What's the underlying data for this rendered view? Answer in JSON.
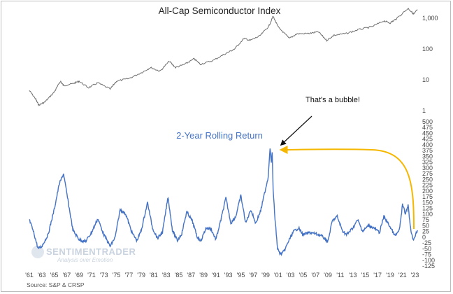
{
  "chart_data": [
    {
      "type": "line",
      "title": "All-Cap Semiconductor Index",
      "yscale": "log",
      "y_tick_labels": [
        "1,000",
        "100",
        "10",
        "1"
      ],
      "y_ticks": [
        1000,
        100,
        10,
        1
      ],
      "ylim": [
        1,
        2200
      ],
      "x_range": [
        "1961",
        "2023"
      ],
      "series": [
        {
          "x": [
            1961.0,
            1962.0,
            1962.5,
            1963.5,
            1965.0,
            1966.0,
            1966.5,
            1968.0,
            1969.0,
            1970.5,
            1972.0,
            1974.0,
            1975.0,
            1977.0,
            1979.0,
            1980.5,
            1982.0,
            1983.5,
            1984.5,
            1986.0,
            1987.5,
            1988.5,
            1990.5,
            1992.5,
            1994.0,
            1995.5,
            1996.5,
            1998.0,
            1999.5,
            2000.2,
            2001.0,
            2002.8,
            2004.0,
            2006.0,
            2007.5,
            2008.8,
            2010.0,
            2012.0,
            2014.0,
            2016.0,
            2018.0,
            2019.0,
            2020.0,
            2021.9,
            2022.8,
            2023.4
          ],
          "values": [
            4.5,
            2.4,
            1.5,
            1.9,
            4.0,
            9.0,
            6.5,
            7.5,
            9.0,
            5.5,
            8.0,
            5.0,
            9.0,
            11.0,
            17.0,
            25.0,
            19.0,
            40.0,
            25.0,
            32.0,
            48.0,
            32.0,
            42.0,
            70.0,
            100.0,
            220.0,
            190.0,
            260.0,
            550.0,
            1150.0,
            520.0,
            220.0,
            310.0,
            320.0,
            360.0,
            190.0,
            280.0,
            320.0,
            430.0,
            520.0,
            820.0,
            700.0,
            950.0,
            2100.0,
            1350.0,
            1900.0
          ]
        }
      ]
    },
    {
      "type": "line",
      "title": "2-Year Rolling Return",
      "ylim": [
        -125,
        500
      ],
      "y_ticks": [
        500,
        475,
        450,
        425,
        400,
        375,
        350,
        325,
        300,
        275,
        250,
        225,
        200,
        175,
        150,
        125,
        100,
        75,
        50,
        25,
        0,
        -25,
        -50,
        -75,
        -100,
        -125
      ],
      "x_ticks": [
        "'61",
        "'63",
        "'65",
        "'67",
        "'69",
        "'71",
        "'73",
        "'75",
        "'77",
        "'79",
        "'81",
        "'83",
        "'85",
        "'87",
        "'89",
        "'91",
        "'93",
        "'95",
        "'97",
        "'99",
        "'01",
        "'03",
        "'05",
        "'07",
        "'09",
        "'11",
        "'13",
        "'15",
        "'17",
        "'19",
        "'21",
        "'23"
      ],
      "x_range": [
        "1961",
        "2023"
      ],
      "color": "#4472c4",
      "annotation_color": "#f5b700",
      "annotation": "That's a bubble!",
      "series": [
        {
          "x": [
            1961.0,
            1961.7,
            1962.4,
            1963.0,
            1964.0,
            1965.0,
            1965.8,
            1966.5,
            1967.2,
            1968.0,
            1969.0,
            1970.0,
            1971.0,
            1972.0,
            1973.0,
            1974.0,
            1974.8,
            1975.6,
            1976.5,
            1977.5,
            1978.3,
            1979.0,
            1980.0,
            1980.8,
            1981.6,
            1982.4,
            1983.3,
            1984.0,
            1984.8,
            1985.5,
            1986.3,
            1987.2,
            1988.0,
            1988.6,
            1989.4,
            1990.2,
            1991.0,
            1991.8,
            1992.6,
            1993.4,
            1994.2,
            1995.0,
            1995.8,
            1996.6,
            1997.4,
            1998.2,
            1998.9,
            1999.4,
            1999.7,
            1999.9,
            2000.05,
            2000.2,
            2000.5,
            2000.9,
            2001.4,
            2002.0,
            2002.8,
            2003.5,
            2004.3,
            2005.0,
            2006.0,
            2007.0,
            2008.0,
            2009.0,
            2009.7,
            2010.5,
            2011.3,
            2012.0,
            2013.0,
            2013.8,
            2014.6,
            2015.5,
            2016.4,
            2017.3,
            2018.0,
            2019.0,
            2019.8,
            2020.5,
            2021.0,
            2021.5,
            2021.9,
            2022.3,
            2022.7,
            2023.0,
            2023.4
          ],
          "values": [
            75,
            20,
            -50,
            -40,
            10,
            120,
            230,
            275,
            160,
            30,
            -10,
            -20,
            20,
            80,
            10,
            -40,
            0,
            120,
            100,
            20,
            -15,
            30,
            150,
            40,
            -5,
            20,
            175,
            30,
            -15,
            15,
            110,
            70,
            0,
            -15,
            40,
            35,
            -10,
            75,
            170,
            60,
            90,
            180,
            60,
            120,
            60,
            115,
            200,
            260,
            390,
            320,
            370,
            200,
            80,
            -50,
            -75,
            -60,
            -10,
            25,
            40,
            10,
            20,
            15,
            5,
            -20,
            70,
            90,
            30,
            10,
            40,
            75,
            25,
            50,
            40,
            20,
            90,
            45,
            5,
            30,
            140,
            100,
            140,
            40,
            -15,
            5,
            30
          ]
        }
      ]
    }
  ],
  "source": "Source: S&P & CRSP",
  "watermark": {
    "name": "SENTIMENTRADER",
    "tagline": "Analysis over Emotion"
  }
}
